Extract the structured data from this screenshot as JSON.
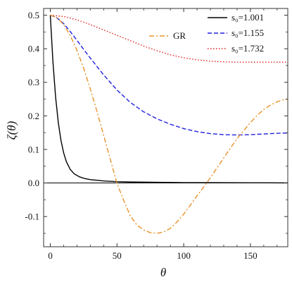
{
  "chart_data": {
    "type": "line",
    "xlabel": "θ",
    "ylabel": "ζ(θ)",
    "xlim": [
      -5,
      178
    ],
    "ylim": [
      -0.19,
      0.52
    ],
    "x_ticks": [
      0,
      50,
      100,
      150
    ],
    "y_ticks": [
      -0.1,
      0.0,
      0.1,
      0.2,
      0.3,
      0.4,
      0.5
    ],
    "y_tick_labels": [
      "-0.1",
      "0.0",
      "0.1",
      "0.2",
      "0.3",
      "0.4",
      "0.5"
    ],
    "zero_line": true,
    "grid": false,
    "series": [
      {
        "name": "s₀=1.001",
        "color": "#000000",
        "dash": "solid",
        "x": [
          0,
          2,
          4,
          6,
          8,
          10,
          12,
          15,
          18,
          22,
          26,
          30,
          35,
          40,
          50,
          60,
          80,
          100,
          120,
          150,
          178
        ],
        "y": [
          0.5,
          0.36,
          0.255,
          0.18,
          0.127,
          0.09,
          0.064,
          0.04,
          0.027,
          0.018,
          0.013,
          0.01,
          0.008,
          0.006,
          0.004,
          0.003,
          0.002,
          0.001,
          0.001,
          0.0005,
          0.0003
        ]
      },
      {
        "name": "s₀=1.155",
        "color": "#1f1fe0",
        "dash": "dashed",
        "x": [
          0,
          5,
          10,
          15,
          20,
          25,
          30,
          40,
          50,
          60,
          70,
          80,
          90,
          100,
          110,
          120,
          130,
          140,
          150,
          160,
          170,
          178
        ],
        "y": [
          0.5,
          0.492,
          0.475,
          0.451,
          0.425,
          0.398,
          0.372,
          0.322,
          0.277,
          0.24,
          0.212,
          0.191,
          0.175,
          0.162,
          0.153,
          0.147,
          0.144,
          0.143,
          0.144,
          0.146,
          0.148,
          0.149
        ]
      },
      {
        "name": "s₀=1.732",
        "color": "#e01f1f",
        "dash": "dotted",
        "x": [
          0,
          10,
          20,
          30,
          40,
          50,
          60,
          70,
          80,
          90,
          100,
          110,
          120,
          130,
          140,
          150,
          160,
          170,
          178
        ],
        "y": [
          0.5,
          0.496,
          0.486,
          0.472,
          0.456,
          0.44,
          0.424,
          0.408,
          0.394,
          0.382,
          0.373,
          0.367,
          0.363,
          0.361,
          0.36,
          0.36,
          0.36,
          0.36,
          0.36
        ]
      },
      {
        "name": "GR",
        "color": "#e8922a",
        "dash": "dashdot",
        "x": [
          0,
          5,
          10,
          15,
          20,
          25,
          30,
          35,
          40,
          45,
          50,
          55,
          60,
          65,
          70,
          75,
          80,
          85,
          90,
          95,
          100,
          105,
          110,
          115,
          120,
          125,
          130,
          135,
          140,
          145,
          150,
          155,
          160,
          165,
          170,
          175,
          178
        ],
        "y": [
          0.5,
          0.493,
          0.472,
          0.439,
          0.395,
          0.342,
          0.28,
          0.213,
          0.142,
          0.07,
          -0.001,
          -0.052,
          -0.098,
          -0.126,
          -0.14,
          -0.148,
          -0.15,
          -0.146,
          -0.135,
          -0.116,
          -0.093,
          -0.066,
          -0.038,
          -0.012,
          0.016,
          0.045,
          0.075,
          0.104,
          0.132,
          0.156,
          0.18,
          0.201,
          0.219,
          0.232,
          0.242,
          0.248,
          0.25
        ]
      }
    ],
    "legends": [
      {
        "entries": [
          "s₀=1.001",
          "s₀=1.155",
          "s₀=1.732"
        ],
        "placement": "top-right"
      },
      {
        "entries": [
          "GR"
        ],
        "placement": "top-center"
      }
    ]
  }
}
